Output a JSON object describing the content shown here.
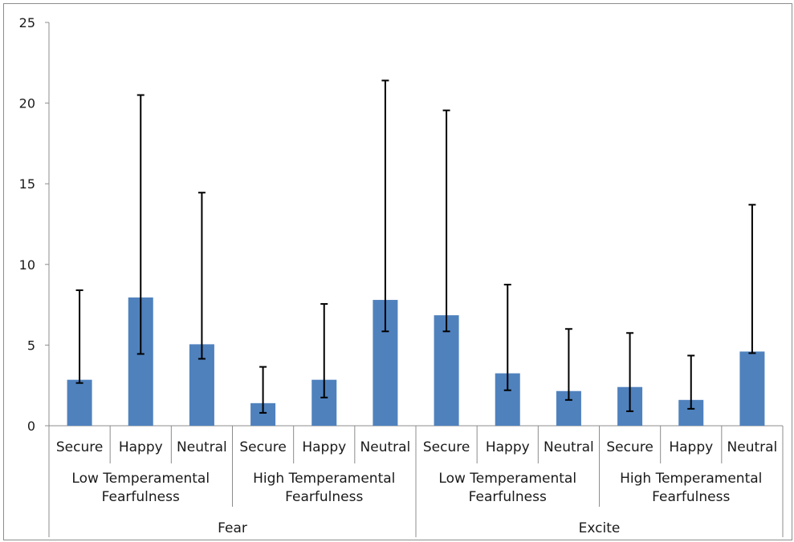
{
  "chart_data": {
    "type": "bar",
    "title": "",
    "xlabel": "",
    "ylabel": "",
    "ylim": [
      0,
      25
    ],
    "yticks": [
      0,
      5,
      10,
      15,
      20,
      25
    ],
    "grid": false,
    "legend": "none",
    "bar_color": "#4f81bd",
    "categories": [
      "Secure",
      "Happy",
      "Neutral",
      "Secure",
      "Happy",
      "Neutral",
      "Secure",
      "Happy",
      "Neutral",
      "Secure",
      "Happy",
      "Neutral"
    ],
    "groups": [
      {
        "name": "Low Temperamental Fearfulness",
        "lines": [
          "Low Temperamental",
          "Fearfulness"
        ],
        "parent": "Fear"
      },
      {
        "name": "High Temperamental Fearfulness",
        "lines": [
          "High Temperamental",
          "Fearfulness"
        ],
        "parent": "Fear"
      },
      {
        "name": "Low Temperamental Fearfulness",
        "lines": [
          "Low Temperamental",
          "Fearfulness"
        ],
        "parent": "Excite"
      },
      {
        "name": "High Temperamental Fearfulness",
        "lines": [
          "High Temperamental",
          "Fearfulness"
        ],
        "parent": "Excite"
      }
    ],
    "top_groups": [
      "Fear",
      "Excite"
    ],
    "values": [
      2.85,
      7.95,
      5.05,
      1.4,
      2.85,
      7.8,
      6.85,
      3.25,
      2.15,
      2.4,
      1.6,
      4.6
    ],
    "error_bars": [
      {
        "low": 2.65,
        "high": 8.4
      },
      {
        "low": 4.45,
        "high": 20.5
      },
      {
        "low": 4.15,
        "high": 14.45
      },
      {
        "low": 0.8,
        "high": 3.65
      },
      {
        "low": 1.75,
        "high": 7.55
      },
      {
        "low": 5.85,
        "high": 21.4
      },
      {
        "low": 5.85,
        "high": 19.55
      },
      {
        "low": 2.2,
        "high": 8.75
      },
      {
        "low": 1.6,
        "high": 6.0
      },
      {
        "low": 0.9,
        "high": 5.75
      },
      {
        "low": 1.05,
        "high": 4.35
      },
      {
        "low": 4.5,
        "high": 13.7
      }
    ]
  }
}
